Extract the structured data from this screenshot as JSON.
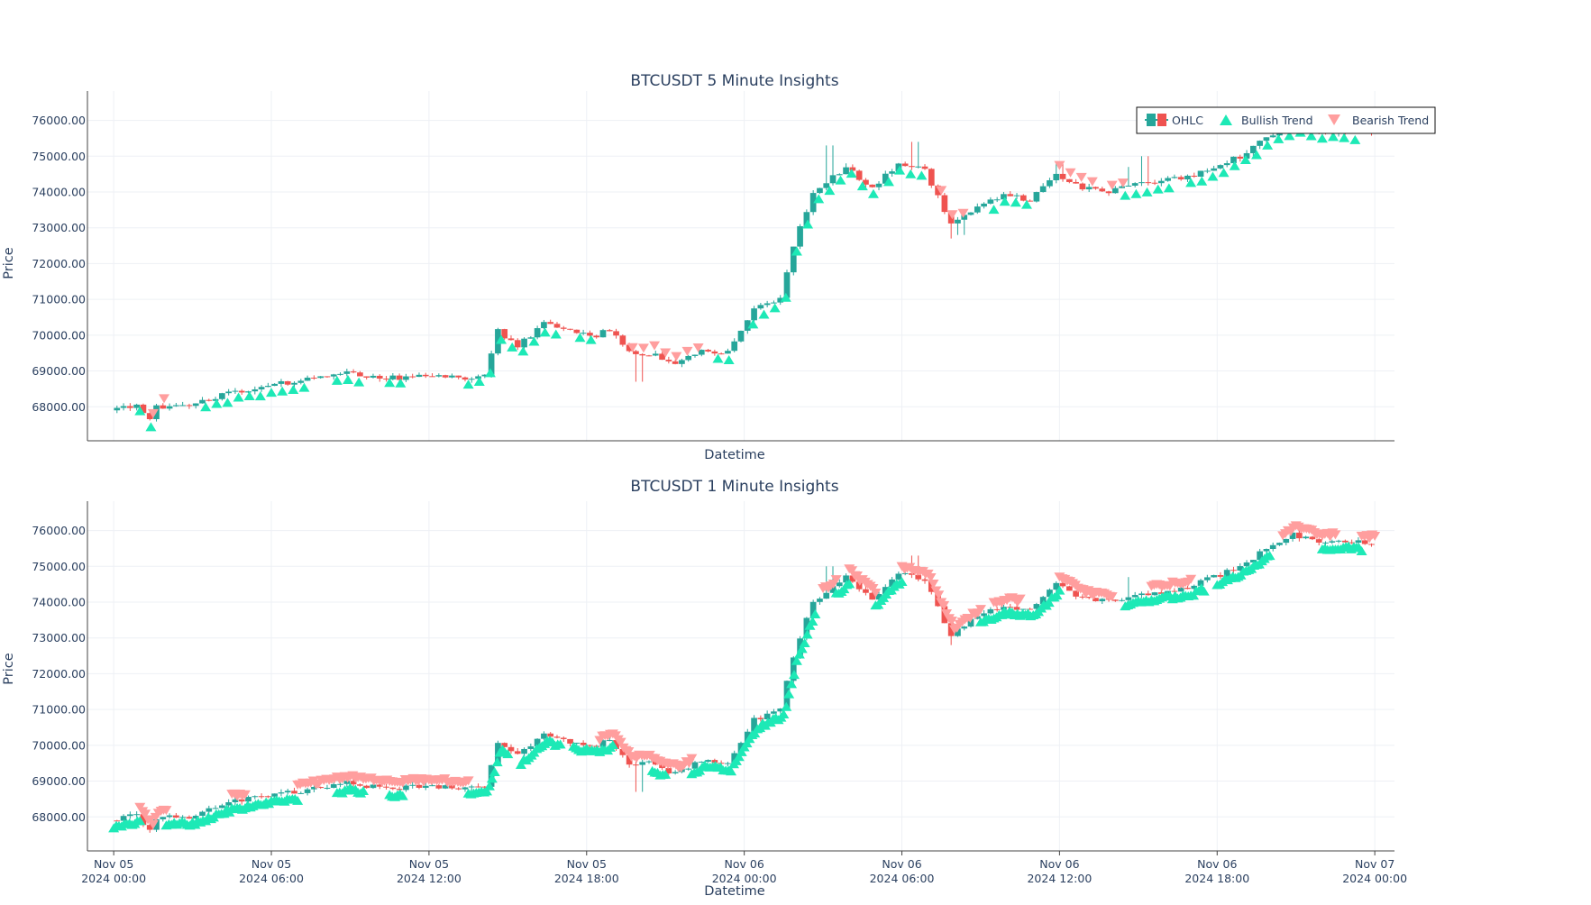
{
  "colors": {
    "increasing": "#26a69a",
    "decreasing": "#ef5350",
    "bullish": "#1de9b6",
    "bearish": "#ff9e9e",
    "grid": "#eef0f5",
    "axis": "#444444",
    "text": "#2a3f5f"
  },
  "legend": [
    {
      "key": "ohlc",
      "label": "OHLC",
      "icon": "candlestick-icon"
    },
    {
      "key": "bull",
      "label": "Bullish Trend",
      "icon": "triangle-up-icon"
    },
    {
      "key": "bear",
      "label": "Bearish Trend",
      "icon": "triangle-down-icon"
    }
  ],
  "chart_data": [
    {
      "type": "candlestick",
      "title": "BTCUSDT 5 Minute Insights",
      "xlabel": "Datetime",
      "ylabel": "Price",
      "xrange": [
        "2024-11-04T23:00",
        "2024-11-07T00:45"
      ],
      "ylim": [
        67050,
        76820
      ],
      "yticks": [
        "68000.00",
        "69000.00",
        "70000.00",
        "71000.00",
        "72000.00",
        "73000.00",
        "74000.00",
        "75000.00",
        "76000.00"
      ],
      "show_xtick_labels": false,
      "interval_minutes": 5,
      "path": [
        [
          "2024-11-05T00:00",
          67900
        ],
        [
          "2024-11-05T01:00",
          68050
        ],
        [
          "2024-11-05T01:30",
          67600
        ],
        [
          "2024-11-05T01:45",
          68000
        ],
        [
          "2024-11-05T03:00",
          68000
        ],
        [
          "2024-11-05T04:30",
          68400
        ],
        [
          "2024-11-05T06:00",
          68600
        ],
        [
          "2024-11-05T07:30",
          68750
        ],
        [
          "2024-11-05T09:00",
          68950
        ],
        [
          "2024-11-05T10:30",
          68800
        ],
        [
          "2024-11-05T12:00",
          68850
        ],
        [
          "2024-11-05T13:30",
          68800
        ],
        [
          "2024-11-05T14:15",
          68900
        ],
        [
          "2024-11-05T14:45",
          70100
        ],
        [
          "2024-11-05T15:30",
          69700
        ],
        [
          "2024-11-05T16:30",
          70300
        ],
        [
          "2024-11-05T17:30",
          70100
        ],
        [
          "2024-11-05T18:30",
          70000
        ],
        [
          "2024-11-05T19:00",
          70150
        ],
        [
          "2024-11-05T19:45",
          69500
        ],
        [
          "2024-11-05T20:30",
          69500
        ],
        [
          "2024-11-05T21:30",
          69200
        ],
        [
          "2024-11-05T22:30",
          69600
        ],
        [
          "2024-11-05T23:30",
          69500
        ],
        [
          "2024-11-06T00:30",
          70700
        ],
        [
          "2024-11-06T01:30",
          71000
        ],
        [
          "2024-11-06T02:00",
          72500
        ],
        [
          "2024-11-06T02:45",
          74000
        ],
        [
          "2024-11-06T04:00",
          74700
        ],
        [
          "2024-11-06T05:00",
          74100
        ],
        [
          "2024-11-06T06:00",
          74800
        ],
        [
          "2024-11-06T07:00",
          74600
        ],
        [
          "2024-11-06T08:00",
          73100
        ],
        [
          "2024-11-06T09:00",
          73600
        ],
        [
          "2024-11-06T10:00",
          73900
        ],
        [
          "2024-11-06T11:00",
          73800
        ],
        [
          "2024-11-06T12:00",
          74500
        ],
        [
          "2024-11-06T13:00",
          74100
        ],
        [
          "2024-11-06T14:00",
          74000
        ],
        [
          "2024-11-06T15:00",
          74200
        ],
        [
          "2024-11-06T16:00",
          74300
        ],
        [
          "2024-11-06T17:00",
          74400
        ],
        [
          "2024-11-06T18:00",
          74700
        ],
        [
          "2024-11-06T19:00",
          75000
        ],
        [
          "2024-11-06T20:00",
          75500
        ],
        [
          "2024-11-06T21:00",
          75900
        ],
        [
          "2024-11-06T22:00",
          75700
        ],
        [
          "2024-11-06T23:00",
          75700
        ],
        [
          "2024-11-06T23:55",
          75650
        ]
      ],
      "spikes": [
        [
          "2024-11-05T19:50",
          68700
        ],
        [
          "2024-11-06T03:05",
          75300
        ],
        [
          "2024-11-06T03:45",
          74800
        ],
        [
          "2024-11-06T06:25",
          75400
        ],
        [
          "2024-11-06T07:45",
          72700
        ],
        [
          "2024-11-06T08:05",
          72800
        ],
        [
          "2024-11-06T11:50",
          74800
        ],
        [
          "2024-11-06T14:30",
          74700
        ],
        [
          "2024-11-06T15:10",
          75000
        ]
      ],
      "bull_segments": [
        [
          "2024-11-05T01:00",
          "2024-11-05T01:30"
        ],
        [
          "2024-11-05T03:30",
          "2024-11-05T07:30"
        ],
        [
          "2024-11-05T08:30",
          "2024-11-05T09:30"
        ],
        [
          "2024-11-05T10:30",
          "2024-11-05T11:00"
        ],
        [
          "2024-11-05T13:30",
          "2024-11-05T17:00"
        ],
        [
          "2024-11-05T17:45",
          "2024-11-05T18:15"
        ],
        [
          "2024-11-05T23:00",
          "2024-11-05T23:30"
        ],
        [
          "2024-11-06T00:20",
          "2024-11-06T05:00"
        ],
        [
          "2024-11-06T05:30",
          "2024-11-06T07:00"
        ],
        [
          "2024-11-06T09:30",
          "2024-11-06T11:00"
        ],
        [
          "2024-11-06T14:30",
          "2024-11-06T16:30"
        ],
        [
          "2024-11-06T17:00",
          "2024-11-06T23:30"
        ]
      ],
      "bear_segments": [
        [
          "2024-11-05T01:30",
          "2024-11-05T02:00"
        ],
        [
          "2024-11-05T19:45",
          "2024-11-05T22:30"
        ],
        [
          "2024-11-06T07:30",
          "2024-11-06T08:30"
        ],
        [
          "2024-11-06T12:00",
          "2024-11-06T13:30"
        ],
        [
          "2024-11-06T14:00",
          "2024-11-06T14:30"
        ],
        [
          "2024-11-06T21:00",
          "2024-11-06T21:40"
        ]
      ]
    },
    {
      "type": "candlestick",
      "title": "BTCUSDT 1 Minute Insights",
      "xlabel": "Datetime",
      "ylabel": "Price",
      "xrange": [
        "2024-11-04T23:00",
        "2024-11-07T00:45"
      ],
      "ylim": [
        67050,
        76820
      ],
      "yticks": [
        "68000.00",
        "69000.00",
        "70000.00",
        "71000.00",
        "72000.00",
        "73000.00",
        "74000.00",
        "75000.00",
        "76000.00"
      ],
      "show_xtick_labels": true,
      "xticks": [
        [
          "2024-11-05T00:00",
          "Nov 05",
          "2024 00:00"
        ],
        [
          "2024-11-05T06:00",
          "Nov 05",
          "2024 06:00"
        ],
        [
          "2024-11-05T12:00",
          "Nov 05",
          "2024 12:00"
        ],
        [
          "2024-11-05T18:00",
          "Nov 05",
          "2024 18:00"
        ],
        [
          "2024-11-06T00:00",
          "Nov 06",
          "2024 00:00"
        ],
        [
          "2024-11-06T06:00",
          "Nov 06",
          "2024 06:00"
        ],
        [
          "2024-11-06T12:00",
          "Nov 06",
          "2024 12:00"
        ],
        [
          "2024-11-06T18:00",
          "Nov 06",
          "2024 18:00"
        ],
        [
          "2024-11-07T00:00",
          "Nov 07",
          "2024 00:00"
        ]
      ],
      "interval_minutes": 1,
      "path": [
        [
          "2024-11-05T00:00",
          67900
        ],
        [
          "2024-11-05T01:00",
          68050
        ],
        [
          "2024-11-05T01:30",
          67600
        ],
        [
          "2024-11-05T01:45",
          68000
        ],
        [
          "2024-11-05T03:00",
          68000
        ],
        [
          "2024-11-05T04:30",
          68400
        ],
        [
          "2024-11-05T06:00",
          68600
        ],
        [
          "2024-11-05T07:30",
          68750
        ],
        [
          "2024-11-05T09:00",
          68950
        ],
        [
          "2024-11-05T10:30",
          68800
        ],
        [
          "2024-11-05T12:00",
          68850
        ],
        [
          "2024-11-05T13:30",
          68800
        ],
        [
          "2024-11-05T14:15",
          68900
        ],
        [
          "2024-11-05T14:45",
          70100
        ],
        [
          "2024-11-05T15:30",
          69700
        ],
        [
          "2024-11-05T16:30",
          70300
        ],
        [
          "2024-11-05T17:30",
          70100
        ],
        [
          "2024-11-05T18:30",
          70000
        ],
        [
          "2024-11-05T19:00",
          70150
        ],
        [
          "2024-11-05T19:45",
          69500
        ],
        [
          "2024-11-05T20:30",
          69500
        ],
        [
          "2024-11-05T21:30",
          69200
        ],
        [
          "2024-11-05T22:30",
          69600
        ],
        [
          "2024-11-05T23:30",
          69500
        ],
        [
          "2024-11-06T00:30",
          70700
        ],
        [
          "2024-11-06T01:30",
          71000
        ],
        [
          "2024-11-06T02:00",
          72500
        ],
        [
          "2024-11-06T02:45",
          74000
        ],
        [
          "2024-11-06T04:00",
          74700
        ],
        [
          "2024-11-06T05:00",
          74100
        ],
        [
          "2024-11-06T06:00",
          74800
        ],
        [
          "2024-11-06T07:00",
          74600
        ],
        [
          "2024-11-06T08:00",
          73100
        ],
        [
          "2024-11-06T09:00",
          73600
        ],
        [
          "2024-11-06T10:00",
          73900
        ],
        [
          "2024-11-06T11:00",
          73800
        ],
        [
          "2024-11-06T12:00",
          74500
        ],
        [
          "2024-11-06T13:00",
          74100
        ],
        [
          "2024-11-06T14:00",
          74000
        ],
        [
          "2024-11-06T15:00",
          74200
        ],
        [
          "2024-11-06T16:00",
          74300
        ],
        [
          "2024-11-06T17:00",
          74400
        ],
        [
          "2024-11-06T18:00",
          74700
        ],
        [
          "2024-11-06T19:00",
          75000
        ],
        [
          "2024-11-06T20:00",
          75500
        ],
        [
          "2024-11-06T21:00",
          75900
        ],
        [
          "2024-11-06T22:00",
          75700
        ],
        [
          "2024-11-06T23:00",
          75700
        ],
        [
          "2024-11-06T23:55",
          75650
        ]
      ],
      "spikes": [
        [
          "2024-11-05T19:50",
          68700
        ],
        [
          "2024-11-06T03:05",
          75000
        ],
        [
          "2024-11-06T06:25",
          75300
        ],
        [
          "2024-11-06T07:45",
          72800
        ],
        [
          "2024-11-06T14:30",
          74700
        ],
        [
          "2024-11-06T20:45",
          76200
        ]
      ],
      "bull_segments": [
        [
          "2024-11-05T00:00",
          "2024-11-05T01:00"
        ],
        [
          "2024-11-05T02:00",
          "2024-11-05T03:00"
        ],
        [
          "2024-11-05T03:00",
          "2024-11-05T07:00"
        ],
        [
          "2024-11-05T08:30",
          "2024-11-05T09:30"
        ],
        [
          "2024-11-05T10:30",
          "2024-11-05T11:00"
        ],
        [
          "2024-11-05T13:30",
          "2024-11-05T15:00"
        ],
        [
          "2024-11-05T15:30",
          "2024-11-05T17:00"
        ],
        [
          "2024-11-05T17:30",
          "2024-11-05T19:00"
        ],
        [
          "2024-11-05T20:30",
          "2024-11-05T21:00"
        ],
        [
          "2024-11-05T22:00",
          "2024-11-06T02:45"
        ],
        [
          "2024-11-06T03:30",
          "2024-11-06T04:00"
        ],
        [
          "2024-11-06T05:00",
          "2024-11-06T06:00"
        ],
        [
          "2024-11-06T09:00",
          "2024-11-06T12:00"
        ],
        [
          "2024-11-06T14:30",
          "2024-11-06T17:30"
        ],
        [
          "2024-11-06T18:00",
          "2024-11-06T20:00"
        ],
        [
          "2024-11-06T22:00",
          "2024-11-06T23:30"
        ]
      ],
      "bear_segments": [
        [
          "2024-11-05T01:00",
          "2024-11-05T02:00"
        ],
        [
          "2024-11-05T04:30",
          "2024-11-05T05:00"
        ],
        [
          "2024-11-05T07:00",
          "2024-11-05T13:30"
        ],
        [
          "2024-11-05T18:30",
          "2024-11-05T22:00"
        ],
        [
          "2024-11-06T03:00",
          "2024-11-06T03:30"
        ],
        [
          "2024-11-06T04:00",
          "2024-11-06T05:00"
        ],
        [
          "2024-11-06T06:00",
          "2024-11-06T09:00"
        ],
        [
          "2024-11-06T09:30",
          "2024-11-06T10:30"
        ],
        [
          "2024-11-06T12:00",
          "2024-11-06T14:00"
        ],
        [
          "2024-11-06T15:30",
          "2024-11-06T17:00"
        ],
        [
          "2024-11-06T20:30",
          "2024-11-06T22:30"
        ],
        [
          "2024-11-06T23:30",
          "2024-11-07T00:00"
        ]
      ]
    }
  ]
}
